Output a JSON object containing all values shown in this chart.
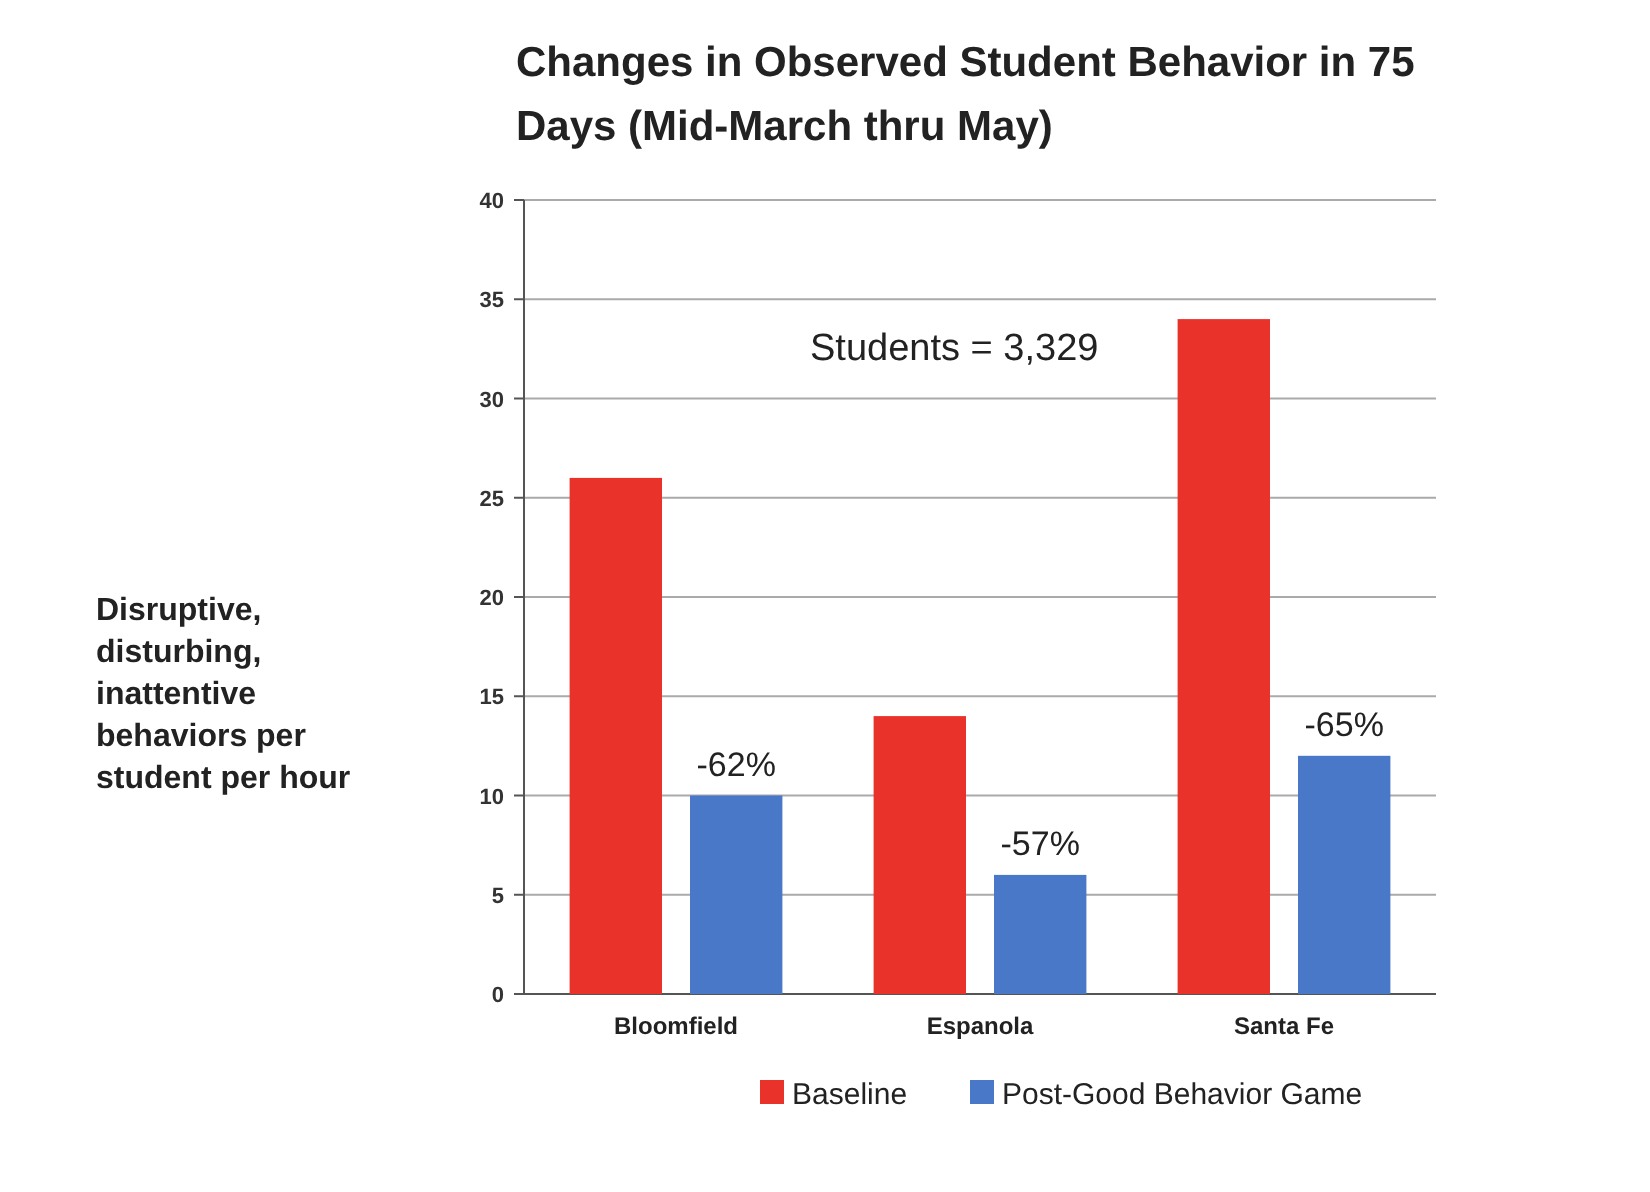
{
  "chart_data": {
    "type": "bar",
    "title": "Changes in Observed Student Behavior in 75 Days (Mid-March thru May)",
    "ylabel": "Disruptive, disturbing, inattentive behaviors per student per hour",
    "categories": [
      "Bloomfield",
      "Espanola",
      "Santa Fe"
    ],
    "series": [
      {
        "name": "Baseline",
        "color": "#e8322a",
        "values": [
          26,
          14,
          34
        ]
      },
      {
        "name": "Post-Good Behavior Game",
        "color": "#4a78c8",
        "values": [
          10,
          6,
          12
        ]
      }
    ],
    "ylim": [
      0,
      40
    ],
    "yticks": [
      0,
      5,
      10,
      15,
      20,
      25,
      30,
      35,
      40
    ],
    "grid": "y",
    "legend": "bottom",
    "annotations": [
      "Students = 3,329",
      "-62%",
      "-57%",
      "-65%"
    ]
  }
}
